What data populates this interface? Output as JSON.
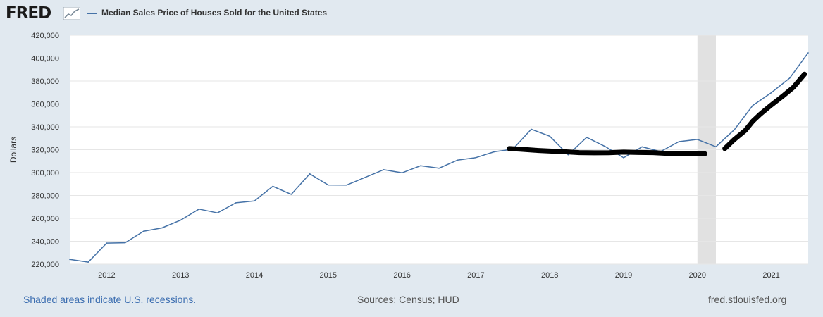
{
  "header": {
    "logo_text": "FRED",
    "logo_icon": "trend-graph-icon",
    "legend_label": "Median Sales Price of Houses Sold for the United States"
  },
  "footer": {
    "recession_note": "Shaded areas indicate U.S. recessions.",
    "sources": "Sources: Census; HUD",
    "site": "fred.stlouisfed.org"
  },
  "chart_data": {
    "type": "line",
    "title": "Median Sales Price of Houses Sold for the United States",
    "xlabel": "",
    "ylabel": "Dollars",
    "ylim": [
      220000,
      420000
    ],
    "xlim": [
      2011.5,
      2021.5
    ],
    "yticks": [
      220000,
      240000,
      260000,
      280000,
      300000,
      320000,
      340000,
      360000,
      380000,
      400000,
      420000
    ],
    "ytick_labels": [
      "220,000",
      "240,000",
      "260,000",
      "280,000",
      "300,000",
      "320,000",
      "340,000",
      "360,000",
      "380,000",
      "400,000",
      "420,000"
    ],
    "xticks": [
      2012,
      2013,
      2014,
      2015,
      2016,
      2017,
      2018,
      2019,
      2020,
      2021
    ],
    "xtick_labels": [
      "2012",
      "2013",
      "2014",
      "2015",
      "2016",
      "2017",
      "2018",
      "2019",
      "2020",
      "2021"
    ],
    "recessions": [
      [
        2020.0,
        2020.25
      ]
    ],
    "series": [
      {
        "name": "Median Sales Price of Houses Sold for the United States",
        "color": "#4572a7",
        "x": [
          2011.5,
          2011.75,
          2012.0,
          2012.25,
          2012.5,
          2012.75,
          2013.0,
          2013.25,
          2013.5,
          2013.75,
          2014.0,
          2014.25,
          2014.5,
          2014.75,
          2015.0,
          2015.25,
          2015.5,
          2015.75,
          2016.0,
          2016.25,
          2016.5,
          2016.75,
          2017.0,
          2017.25,
          2017.5,
          2017.75,
          2018.0,
          2018.25,
          2018.5,
          2018.75,
          2019.0,
          2019.25,
          2019.5,
          2019.75,
          2020.0,
          2020.25,
          2020.5,
          2020.75,
          2021.0,
          2021.25,
          2021.5
        ],
        "values": [
          224100,
          221800,
          238400,
          238700,
          248800,
          251700,
          258400,
          268100,
          264800,
          273600,
          275200,
          288000,
          281000,
          298900,
          289200,
          289100,
          295800,
          302500,
          299800,
          306000,
          303800,
          310900,
          313100,
          318200,
          320500,
          337900,
          331800,
          315600,
          330800,
          322800,
          313000,
          322500,
          318400,
          327100,
          329000,
          322600,
          337500,
          358700,
          369800,
          382600,
          404700
        ]
      }
    ],
    "annotations": [
      {
        "name": "hand-drawn-flat-trend",
        "color": "#000000",
        "x": [
          2017.45,
          2017.6,
          2017.8,
          2018.0,
          2018.2,
          2018.4,
          2018.6,
          2018.8,
          2019.0,
          2019.2,
          2019.4,
          2019.6,
          2019.8,
          2020.1
        ],
        "values": [
          321000,
          320500,
          319500,
          318800,
          318200,
          317500,
          317300,
          317400,
          317900,
          317600,
          317500,
          316800,
          316600,
          316500
        ]
      },
      {
        "name": "hand-drawn-rising-trend",
        "color": "#000000",
        "x": [
          2020.37,
          2020.5,
          2020.65,
          2020.75,
          2020.85,
          2021.0,
          2021.15,
          2021.3,
          2021.45
        ],
        "values": [
          321000,
          329000,
          337000,
          345000,
          351000,
          359000,
          366500,
          374500,
          386000
        ]
      }
    ]
  }
}
